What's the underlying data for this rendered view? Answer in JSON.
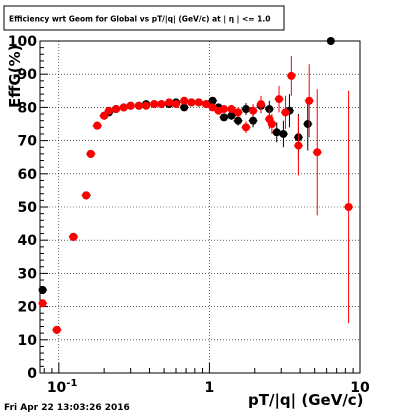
{
  "title": "Efficiency wrt Geom for Global vs pT/|q| (GeV/c) at |  η | <= 1.0",
  "footer_timestamp": "Fri Apr 22 13:03:26 2016",
  "colors": {
    "black_series": "#000000",
    "red_series": "#ff0000",
    "grid": "#000000",
    "frame": "#000000"
  },
  "chart_data": {
    "type": "scatter",
    "title": "Efficiency wrt Geom for Global vs pT/|q| (GeV/c) at |  η | <= 1.0",
    "xlabel": "pT/|q| (GeV/c)",
    "ylabel": "EffG(%)",
    "xscale": "log",
    "xlim": [
      0.075,
      10
    ],
    "ylim": [
      0,
      100
    ],
    "x_ticks": [
      {
        "v": 0.1,
        "label": "10^-1"
      },
      {
        "v": 1,
        "label": "1"
      },
      {
        "v": 10,
        "label": "10"
      }
    ],
    "y_ticks": [
      0,
      10,
      20,
      30,
      40,
      50,
      60,
      70,
      80,
      90,
      100
    ],
    "grid": true,
    "series": [
      {
        "color": "#000000",
        "points": [
          {
            "x": 0.078,
            "y": 25.0,
            "yerr": 0.3
          },
          {
            "x": 0.097,
            "y": 13.0,
            "yerr": 0.3
          },
          {
            "x": 0.125,
            "y": 41.0,
            "yerr": 0.3
          },
          {
            "x": 0.152,
            "y": 53.5,
            "yerr": 0.3
          },
          {
            "x": 0.163,
            "y": 66.0,
            "yerr": 0.3
          },
          {
            "x": 0.18,
            "y": 74.5,
            "yerr": 0.3
          },
          {
            "x": 0.2,
            "y": 77.5,
            "yerr": 0.3
          },
          {
            "x": 0.215,
            "y": 78.5,
            "yerr": 0.3
          },
          {
            "x": 0.24,
            "y": 79.5,
            "yerr": 0.3
          },
          {
            "x": 0.27,
            "y": 80.0,
            "yerr": 0.3
          },
          {
            "x": 0.3,
            "y": 80.5,
            "yerr": 0.3
          },
          {
            "x": 0.34,
            "y": 80.5,
            "yerr": 0.3
          },
          {
            "x": 0.38,
            "y": 81.0,
            "yerr": 0.3
          },
          {
            "x": 0.43,
            "y": 81.0,
            "yerr": 0.3
          },
          {
            "x": 0.48,
            "y": 81.0,
            "yerr": 0.3
          },
          {
            "x": 0.54,
            "y": 81.0,
            "yerr": 0.3
          },
          {
            "x": 0.6,
            "y": 81.5,
            "yerr": 0.3
          },
          {
            "x": 0.68,
            "y": 80.0,
            "yerr": 0.5
          },
          {
            "x": 0.76,
            "y": 81.5,
            "yerr": 0.5
          },
          {
            "x": 0.85,
            "y": 81.5,
            "yerr": 0.5
          },
          {
            "x": 0.95,
            "y": 81.0,
            "yerr": 0.5
          },
          {
            "x": 1.05,
            "y": 82.0,
            "yerr": 0.5
          },
          {
            "x": 1.15,
            "y": 80.0,
            "yerr": 0.8
          },
          {
            "x": 1.25,
            "y": 77.0,
            "yerr": 1.0
          },
          {
            "x": 1.4,
            "y": 77.5,
            "yerr": 1.2
          },
          {
            "x": 1.55,
            "y": 76.0,
            "yerr": 1.5
          },
          {
            "x": 1.75,
            "y": 79.5,
            "yerr": 1.8
          },
          {
            "x": 1.95,
            "y": 76.0,
            "yerr": 2.0
          },
          {
            "x": 2.2,
            "y": 80.5,
            "yerr": 2.2
          },
          {
            "x": 2.5,
            "y": 79.5,
            "yerr": 2.5
          },
          {
            "x": 2.8,
            "y": 72.5,
            "yerr": 3.0
          },
          {
            "x": 3.1,
            "y": 72.0,
            "yerr": 4.0
          },
          {
            "x": 3.4,
            "y": 79.0,
            "yerr": 5.0
          },
          {
            "x": 3.9,
            "y": 71.0,
            "yerr": 7.0
          },
          {
            "x": 4.5,
            "y": 75.0,
            "yerr": 8.0
          },
          {
            "x": 6.4,
            "y": 100.0,
            "yerr": 0.0
          }
        ]
      },
      {
        "color": "#ff0000",
        "points": [
          {
            "x": 0.078,
            "y": 21.0,
            "yerr": 0.3
          },
          {
            "x": 0.097,
            "y": 13.0,
            "yerr": 0.3
          },
          {
            "x": 0.125,
            "y": 41.0,
            "yerr": 0.3
          },
          {
            "x": 0.152,
            "y": 53.5,
            "yerr": 0.3
          },
          {
            "x": 0.163,
            "y": 66.0,
            "yerr": 0.3
          },
          {
            "x": 0.18,
            "y": 74.5,
            "yerr": 0.3
          },
          {
            "x": 0.2,
            "y": 77.5,
            "yerr": 0.3
          },
          {
            "x": 0.215,
            "y": 79.0,
            "yerr": 0.3
          },
          {
            "x": 0.24,
            "y": 79.5,
            "yerr": 0.3
          },
          {
            "x": 0.27,
            "y": 80.0,
            "yerr": 0.3
          },
          {
            "x": 0.3,
            "y": 80.5,
            "yerr": 0.3
          },
          {
            "x": 0.34,
            "y": 80.5,
            "yerr": 0.3
          },
          {
            "x": 0.38,
            "y": 80.5,
            "yerr": 0.3
          },
          {
            "x": 0.43,
            "y": 81.0,
            "yerr": 0.3
          },
          {
            "x": 0.48,
            "y": 81.0,
            "yerr": 0.3
          },
          {
            "x": 0.54,
            "y": 81.5,
            "yerr": 0.3
          },
          {
            "x": 0.6,
            "y": 81.0,
            "yerr": 0.3
          },
          {
            "x": 0.68,
            "y": 82.0,
            "yerr": 0.5
          },
          {
            "x": 0.76,
            "y": 81.5,
            "yerr": 0.5
          },
          {
            "x": 0.85,
            "y": 81.5,
            "yerr": 0.5
          },
          {
            "x": 0.95,
            "y": 81.0,
            "yerr": 0.5
          },
          {
            "x": 1.05,
            "y": 80.0,
            "yerr": 0.6
          },
          {
            "x": 1.15,
            "y": 79.0,
            "yerr": 0.8
          },
          {
            "x": 1.25,
            "y": 79.5,
            "yerr": 1.0
          },
          {
            "x": 1.4,
            "y": 79.5,
            "yerr": 1.2
          },
          {
            "x": 1.55,
            "y": 78.5,
            "yerr": 1.5
          },
          {
            "x": 1.75,
            "y": 74.0,
            "yerr": 1.8
          },
          {
            "x": 1.95,
            "y": 79.0,
            "yerr": 2.0
          },
          {
            "x": 2.2,
            "y": 81.0,
            "yerr": 2.5
          },
          {
            "x": 2.5,
            "y": 76.5,
            "yerr": 3.0
          },
          {
            "x": 2.6,
            "y": 75.0,
            "yerr": 3.0
          },
          {
            "x": 2.9,
            "y": 82.5,
            "yerr": 4.0
          },
          {
            "x": 3.2,
            "y": 78.5,
            "yerr": 5.0
          },
          {
            "x": 3.5,
            "y": 89.5,
            "yerr": 6.0
          },
          {
            "x": 3.9,
            "y": 68.5,
            "yerr": 9.0
          },
          {
            "x": 4.6,
            "y": 82.0,
            "yerr": 11.0
          },
          {
            "x": 5.2,
            "y": 66.5,
            "yerr": 19.0
          },
          {
            "x": 8.4,
            "y": 50.0,
            "yerr": 35.0
          }
        ]
      }
    ]
  }
}
